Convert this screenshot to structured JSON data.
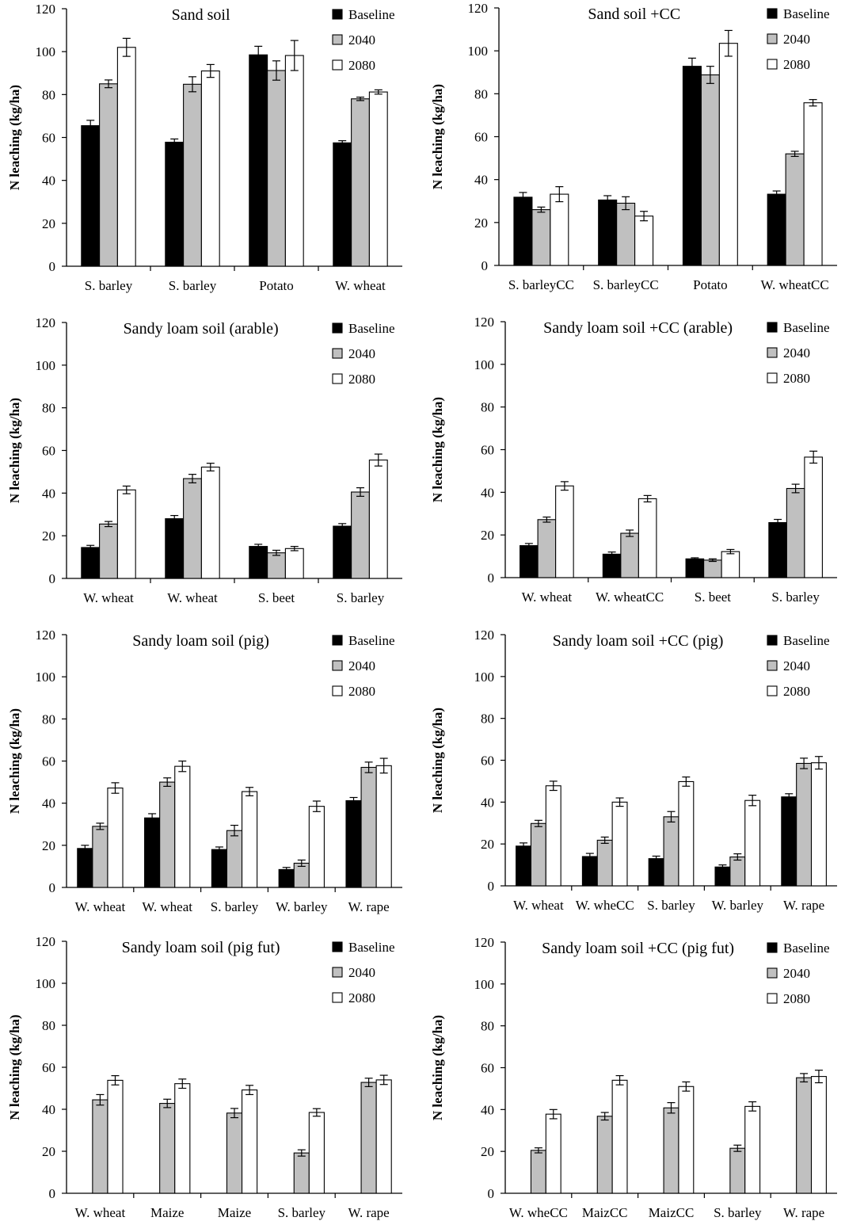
{
  "colors": {
    "Baseline": "#000000",
    "2040": "#c0c0c0",
    "2080": "#ffffff",
    "stroke": "#000000"
  },
  "chart_data": [
    {
      "type": "bar",
      "title": "Sand soil",
      "ylabel": "N leaching (kg/ha)",
      "xlabel": "",
      "ylim": [
        0,
        120
      ],
      "yticks": [
        0,
        20,
        40,
        60,
        80,
        100,
        120
      ],
      "grid": false,
      "legend_position": "top-right",
      "categories": [
        "S. barley",
        "S. barley",
        "Potato",
        "W. wheat"
      ],
      "series": [
        {
          "name": "Baseline",
          "values": [
            65.5,
            57.8,
            98.5,
            57.5
          ],
          "errors": [
            2.5,
            1.5,
            4,
            1
          ]
        },
        {
          "name": "2040",
          "values": [
            85,
            84.8,
            91.2,
            78
          ],
          "errors": [
            1.8,
            3.5,
            4.5,
            0.8
          ]
        },
        {
          "name": "2080",
          "values": [
            102,
            91,
            98.2,
            81.2
          ],
          "errors": [
            4.2,
            3,
            7,
            1
          ]
        }
      ]
    },
    {
      "type": "bar",
      "title": "Sand soil +CC",
      "ylabel": "N leaching (kg/ha)",
      "xlabel": "",
      "ylim": [
        0,
        120
      ],
      "yticks": [
        0,
        20,
        40,
        60,
        80,
        100,
        120
      ],
      "grid": false,
      "legend_position": "top-right",
      "categories": [
        "S. barleyCC",
        "S. barleyCC",
        "Potato",
        "W. wheatCC"
      ],
      "series": [
        {
          "name": "Baseline",
          "values": [
            31.8,
            30.5,
            92.8,
            33.2
          ],
          "errors": [
            2.2,
            2,
            3.8,
            1.5
          ]
        },
        {
          "name": "2040",
          "values": [
            26,
            29,
            88.8,
            52
          ],
          "errors": [
            1.2,
            3,
            4,
            1.2
          ]
        },
        {
          "name": "2080",
          "values": [
            33.2,
            23,
            103.5,
            75.8
          ],
          "errors": [
            3.5,
            2.2,
            6,
            1.5
          ]
        }
      ]
    },
    {
      "type": "bar",
      "title": "Sandy loam soil  (arable)",
      "ylabel": "N leaching (kg/ha)",
      "xlabel": "",
      "ylim": [
        0,
        120
      ],
      "yticks": [
        0,
        20,
        40,
        60,
        80,
        100,
        120
      ],
      "grid": false,
      "legend_position": "top-right",
      "categories": [
        "W. wheat",
        "W. wheat",
        "S. beet",
        "S. barley"
      ],
      "series": [
        {
          "name": "Baseline",
          "values": [
            14.5,
            28,
            15,
            24.5
          ],
          "errors": [
            1,
            1.5,
            1,
            1.2
          ]
        },
        {
          "name": "2040",
          "values": [
            25.5,
            46.8,
            12,
            40.5
          ],
          "errors": [
            1.2,
            2,
            1.2,
            2
          ]
        },
        {
          "name": "2080",
          "values": [
            41.5,
            52.2,
            14,
            55.5
          ],
          "errors": [
            1.8,
            1.8,
            1,
            2.8
          ]
        }
      ]
    },
    {
      "type": "bar",
      "title": "Sandy loam soil +CC (arable)",
      "ylabel": "N leaching (kg/ha)",
      "xlabel": "",
      "ylim": [
        0,
        120
      ],
      "yticks": [
        0,
        20,
        40,
        60,
        80,
        100,
        120
      ],
      "grid": false,
      "legend_position": "top-right",
      "categories": [
        "W. wheat",
        "W. wheatCC",
        "S. beet",
        "S. barley"
      ],
      "series": [
        {
          "name": "Baseline",
          "values": [
            15,
            11,
            8.8,
            25.8
          ],
          "errors": [
            1,
            1,
            0.5,
            1.5
          ]
        },
        {
          "name": "2040",
          "values": [
            27.2,
            20.8,
            8.2,
            41.8
          ],
          "errors": [
            1.2,
            1.5,
            0.6,
            2
          ]
        },
        {
          "name": "2080",
          "values": [
            43,
            37,
            12.2,
            56.5
          ],
          "errors": [
            2,
            1.5,
            1,
            2.8
          ]
        }
      ]
    },
    {
      "type": "bar",
      "title": "Sandy loam soil  (pig)",
      "ylabel": "N leaching (kg/ha)",
      "xlabel": "",
      "ylim": [
        0,
        120
      ],
      "yticks": [
        0,
        20,
        40,
        60,
        80,
        100,
        120
      ],
      "grid": false,
      "legend_position": "top-right",
      "categories": [
        "W. wheat",
        "W. wheat",
        "S. barley",
        "W. barley",
        "W. rape"
      ],
      "series": [
        {
          "name": "Baseline",
          "values": [
            18.5,
            33,
            18,
            8.5,
            41.2
          ],
          "errors": [
            1.5,
            2,
            1.2,
            1,
            1.5
          ]
        },
        {
          "name": "2040",
          "values": [
            29,
            50,
            27,
            11.5,
            57
          ],
          "errors": [
            1.5,
            2,
            2.5,
            1.5,
            2.5
          ]
        },
        {
          "name": "2080",
          "values": [
            47.2,
            57.5,
            45.5,
            38.5,
            57.8
          ],
          "errors": [
            2.5,
            2.5,
            2,
            2.5,
            3.5
          ]
        }
      ]
    },
    {
      "type": "bar",
      "title": "Sandy loam soil +CC (pig)",
      "ylabel": "N leaching (kg/ha)",
      "xlabel": "",
      "ylim": [
        0,
        120
      ],
      "yticks": [
        0,
        20,
        40,
        60,
        80,
        100,
        120
      ],
      "grid": false,
      "legend_position": "top-right",
      "categories": [
        "W. wheat",
        "W. wheCC",
        "S. barley",
        "W. barley",
        "W. rape"
      ],
      "series": [
        {
          "name": "Baseline",
          "values": [
            19,
            14,
            13,
            9,
            42.5
          ],
          "errors": [
            1.5,
            1.5,
            1.2,
            1,
            1.5
          ]
        },
        {
          "name": "2040",
          "values": [
            29.8,
            21.8,
            33,
            13.8,
            58.5
          ],
          "errors": [
            1.5,
            1.5,
            2.5,
            1.5,
            2.5
          ]
        },
        {
          "name": "2080",
          "values": [
            47.8,
            40,
            49.8,
            40.8,
            58.8
          ],
          "errors": [
            2.2,
            2,
            2.2,
            2.5,
            3
          ]
        }
      ]
    },
    {
      "type": "bar",
      "title": "Sandy loam soil  (pig fut)",
      "ylabel": "N leaching (kg/ha)",
      "xlabel": "",
      "ylim": [
        0,
        120
      ],
      "yticks": [
        0,
        20,
        40,
        60,
        80,
        100,
        120
      ],
      "grid": false,
      "legend_position": "top-right",
      "categories": [
        "W. wheat",
        "Maize",
        "Maize",
        "S. barley",
        "W. rape"
      ],
      "series": [
        {
          "name": "Baseline",
          "values": [
            0,
            0,
            0,
            0,
            0
          ],
          "errors": [
            0,
            0,
            0,
            0,
            0
          ]
        },
        {
          "name": "2040",
          "values": [
            44.5,
            42.8,
            38.2,
            19.2,
            52.8
          ],
          "errors": [
            2.5,
            2,
            2.2,
            1.5,
            2
          ]
        },
        {
          "name": "2080",
          "values": [
            53.8,
            52.2,
            49.2,
            38.5,
            54
          ],
          "errors": [
            2.2,
            2.2,
            2.2,
            1.8,
            2.2
          ]
        }
      ]
    },
    {
      "type": "bar",
      "title": "Sandy loam soil +CC (pig fut)",
      "ylabel": "N leaching (kg/ha)",
      "xlabel": "",
      "ylim": [
        0,
        120
      ],
      "yticks": [
        0,
        20,
        40,
        60,
        80,
        100,
        120
      ],
      "grid": false,
      "legend_position": "top-right",
      "categories": [
        "W. wheCC",
        "MaizCC",
        "MaizCC",
        "S. barley",
        "W. rape"
      ],
      "series": [
        {
          "name": "Baseline",
          "values": [
            0,
            0,
            0,
            0,
            0
          ],
          "errors": [
            0,
            0,
            0,
            0,
            0
          ]
        },
        {
          "name": "2040",
          "values": [
            20.5,
            36.8,
            40.8,
            21.5,
            55.2
          ],
          "errors": [
            1.2,
            1.8,
            2.5,
            1.5,
            2
          ]
        },
        {
          "name": "2080",
          "values": [
            37.8,
            54,
            51,
            41.5,
            55.8
          ],
          "errors": [
            2.2,
            2.2,
            2.2,
            2.2,
            3
          ]
        }
      ]
    }
  ]
}
